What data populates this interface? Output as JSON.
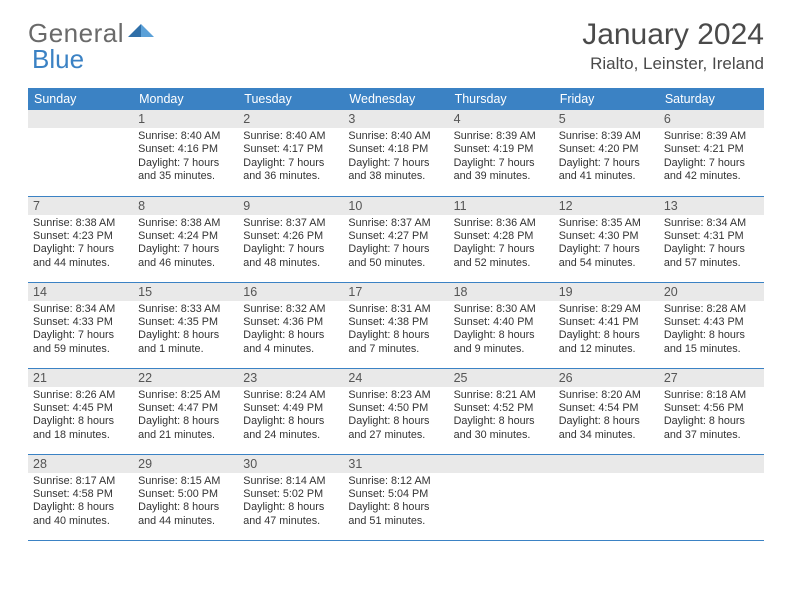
{
  "brand": {
    "part1": "General",
    "part2": "Blue"
  },
  "title": "January 2024",
  "location": "Rialto, Leinster, Ireland",
  "colors": {
    "header_bg": "#3b82c4",
    "header_text": "#ffffff",
    "daynum_bg": "#e9e9e9",
    "daynum_text": "#555555",
    "body_text": "#333333",
    "rule": "#3b82c4",
    "logo_gray": "#6a6a6a",
    "logo_blue": "#3b82c4"
  },
  "typography": {
    "month_title_pt": 30,
    "location_pt": 17,
    "dow_pt": 12.5,
    "daynum_pt": 12.5,
    "info_pt": 10.8
  },
  "days_of_week": [
    "Sunday",
    "Monday",
    "Tuesday",
    "Wednesday",
    "Thursday",
    "Friday",
    "Saturday"
  ],
  "weeks": [
    [
      {
        "blank": true
      },
      {
        "n": "1",
        "sr": "8:40 AM",
        "ss": "4:16 PM",
        "dl": "7 hours and 35 minutes."
      },
      {
        "n": "2",
        "sr": "8:40 AM",
        "ss": "4:17 PM",
        "dl": "7 hours and 36 minutes."
      },
      {
        "n": "3",
        "sr": "8:40 AM",
        "ss": "4:18 PM",
        "dl": "7 hours and 38 minutes."
      },
      {
        "n": "4",
        "sr": "8:39 AM",
        "ss": "4:19 PM",
        "dl": "7 hours and 39 minutes."
      },
      {
        "n": "5",
        "sr": "8:39 AM",
        "ss": "4:20 PM",
        "dl": "7 hours and 41 minutes."
      },
      {
        "n": "6",
        "sr": "8:39 AM",
        "ss": "4:21 PM",
        "dl": "7 hours and 42 minutes."
      }
    ],
    [
      {
        "n": "7",
        "sr": "8:38 AM",
        "ss": "4:23 PM",
        "dl": "7 hours and 44 minutes."
      },
      {
        "n": "8",
        "sr": "8:38 AM",
        "ss": "4:24 PM",
        "dl": "7 hours and 46 minutes."
      },
      {
        "n": "9",
        "sr": "8:37 AM",
        "ss": "4:26 PM",
        "dl": "7 hours and 48 minutes."
      },
      {
        "n": "10",
        "sr": "8:37 AM",
        "ss": "4:27 PM",
        "dl": "7 hours and 50 minutes."
      },
      {
        "n": "11",
        "sr": "8:36 AM",
        "ss": "4:28 PM",
        "dl": "7 hours and 52 minutes."
      },
      {
        "n": "12",
        "sr": "8:35 AM",
        "ss": "4:30 PM",
        "dl": "7 hours and 54 minutes."
      },
      {
        "n": "13",
        "sr": "8:34 AM",
        "ss": "4:31 PM",
        "dl": "7 hours and 57 minutes."
      }
    ],
    [
      {
        "n": "14",
        "sr": "8:34 AM",
        "ss": "4:33 PM",
        "dl": "7 hours and 59 minutes."
      },
      {
        "n": "15",
        "sr": "8:33 AM",
        "ss": "4:35 PM",
        "dl": "8 hours and 1 minute."
      },
      {
        "n": "16",
        "sr": "8:32 AM",
        "ss": "4:36 PM",
        "dl": "8 hours and 4 minutes."
      },
      {
        "n": "17",
        "sr": "8:31 AM",
        "ss": "4:38 PM",
        "dl": "8 hours and 7 minutes."
      },
      {
        "n": "18",
        "sr": "8:30 AM",
        "ss": "4:40 PM",
        "dl": "8 hours and 9 minutes."
      },
      {
        "n": "19",
        "sr": "8:29 AM",
        "ss": "4:41 PM",
        "dl": "8 hours and 12 minutes."
      },
      {
        "n": "20",
        "sr": "8:28 AM",
        "ss": "4:43 PM",
        "dl": "8 hours and 15 minutes."
      }
    ],
    [
      {
        "n": "21",
        "sr": "8:26 AM",
        "ss": "4:45 PM",
        "dl": "8 hours and 18 minutes."
      },
      {
        "n": "22",
        "sr": "8:25 AM",
        "ss": "4:47 PM",
        "dl": "8 hours and 21 minutes."
      },
      {
        "n": "23",
        "sr": "8:24 AM",
        "ss": "4:49 PM",
        "dl": "8 hours and 24 minutes."
      },
      {
        "n": "24",
        "sr": "8:23 AM",
        "ss": "4:50 PM",
        "dl": "8 hours and 27 minutes."
      },
      {
        "n": "25",
        "sr": "8:21 AM",
        "ss": "4:52 PM",
        "dl": "8 hours and 30 minutes."
      },
      {
        "n": "26",
        "sr": "8:20 AM",
        "ss": "4:54 PM",
        "dl": "8 hours and 34 minutes."
      },
      {
        "n": "27",
        "sr": "8:18 AM",
        "ss": "4:56 PM",
        "dl": "8 hours and 37 minutes."
      }
    ],
    [
      {
        "n": "28",
        "sr": "8:17 AM",
        "ss": "4:58 PM",
        "dl": "8 hours and 40 minutes."
      },
      {
        "n": "29",
        "sr": "8:15 AM",
        "ss": "5:00 PM",
        "dl": "8 hours and 44 minutes."
      },
      {
        "n": "30",
        "sr": "8:14 AM",
        "ss": "5:02 PM",
        "dl": "8 hours and 47 minutes."
      },
      {
        "n": "31",
        "sr": "8:12 AM",
        "ss": "5:04 PM",
        "dl": "8 hours and 51 minutes."
      },
      {
        "blank": true
      },
      {
        "blank": true
      },
      {
        "blank": true
      }
    ]
  ],
  "labels": {
    "sunrise": "Sunrise:",
    "sunset": "Sunset:",
    "daylight": "Daylight:"
  }
}
